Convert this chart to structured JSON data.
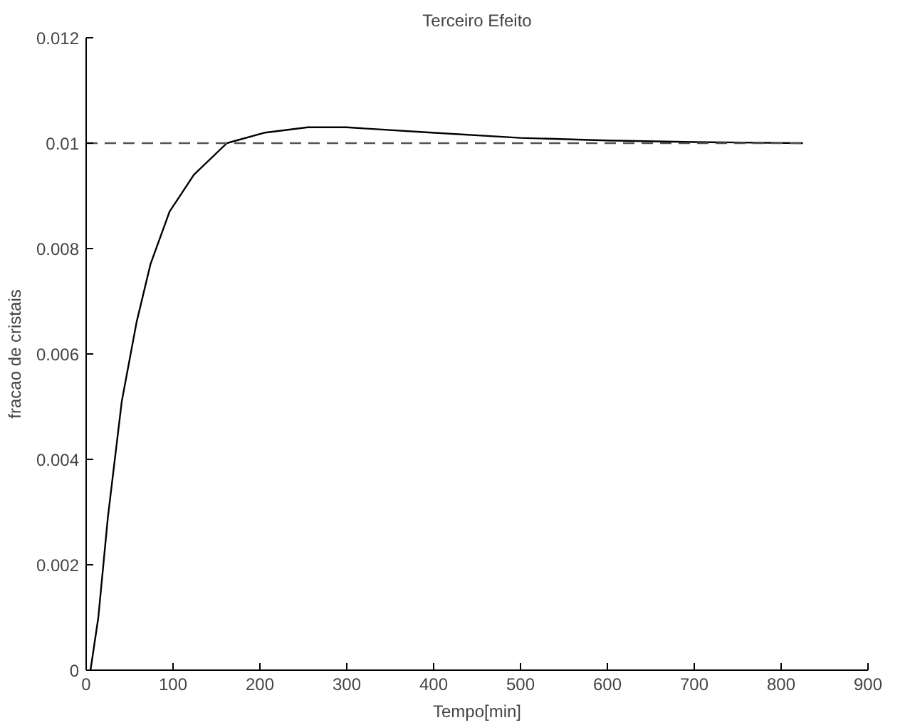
{
  "chart_data": {
    "type": "line",
    "title": "Terceiro Efeito",
    "xlabel": "Tempo[min]",
    "ylabel": "fracao de cristais",
    "xlim": [
      0,
      900
    ],
    "xticks": [
      0,
      100,
      200,
      300,
      400,
      500,
      600,
      700,
      800,
      900
    ],
    "ylim": [
      0,
      0.012
    ],
    "yticks": [
      0,
      0.002,
      0.004,
      0.006,
      0.008,
      0.01,
      0.012
    ],
    "grid": false,
    "series": [
      {
        "color": "#000000",
        "line_style": "solid",
        "x": [
          5,
          14,
          25,
          41,
          58,
          74,
          96,
          124,
          162,
          206,
          255,
          300,
          398,
          500,
          600,
          700,
          825
        ],
        "values": [
          0,
          0.001,
          0.0029,
          0.0051,
          0.0066,
          0.0077,
          0.0087,
          0.0094,
          0.01,
          0.0102,
          0.0103,
          0.0103,
          0.0102,
          0.0101,
          0.01005,
          0.01002,
          0.01
        ]
      },
      {
        "color": "#555555",
        "line_style": "dashed",
        "x": [
          0,
          825
        ],
        "values": [
          0.01,
          0.01
        ]
      }
    ]
  }
}
